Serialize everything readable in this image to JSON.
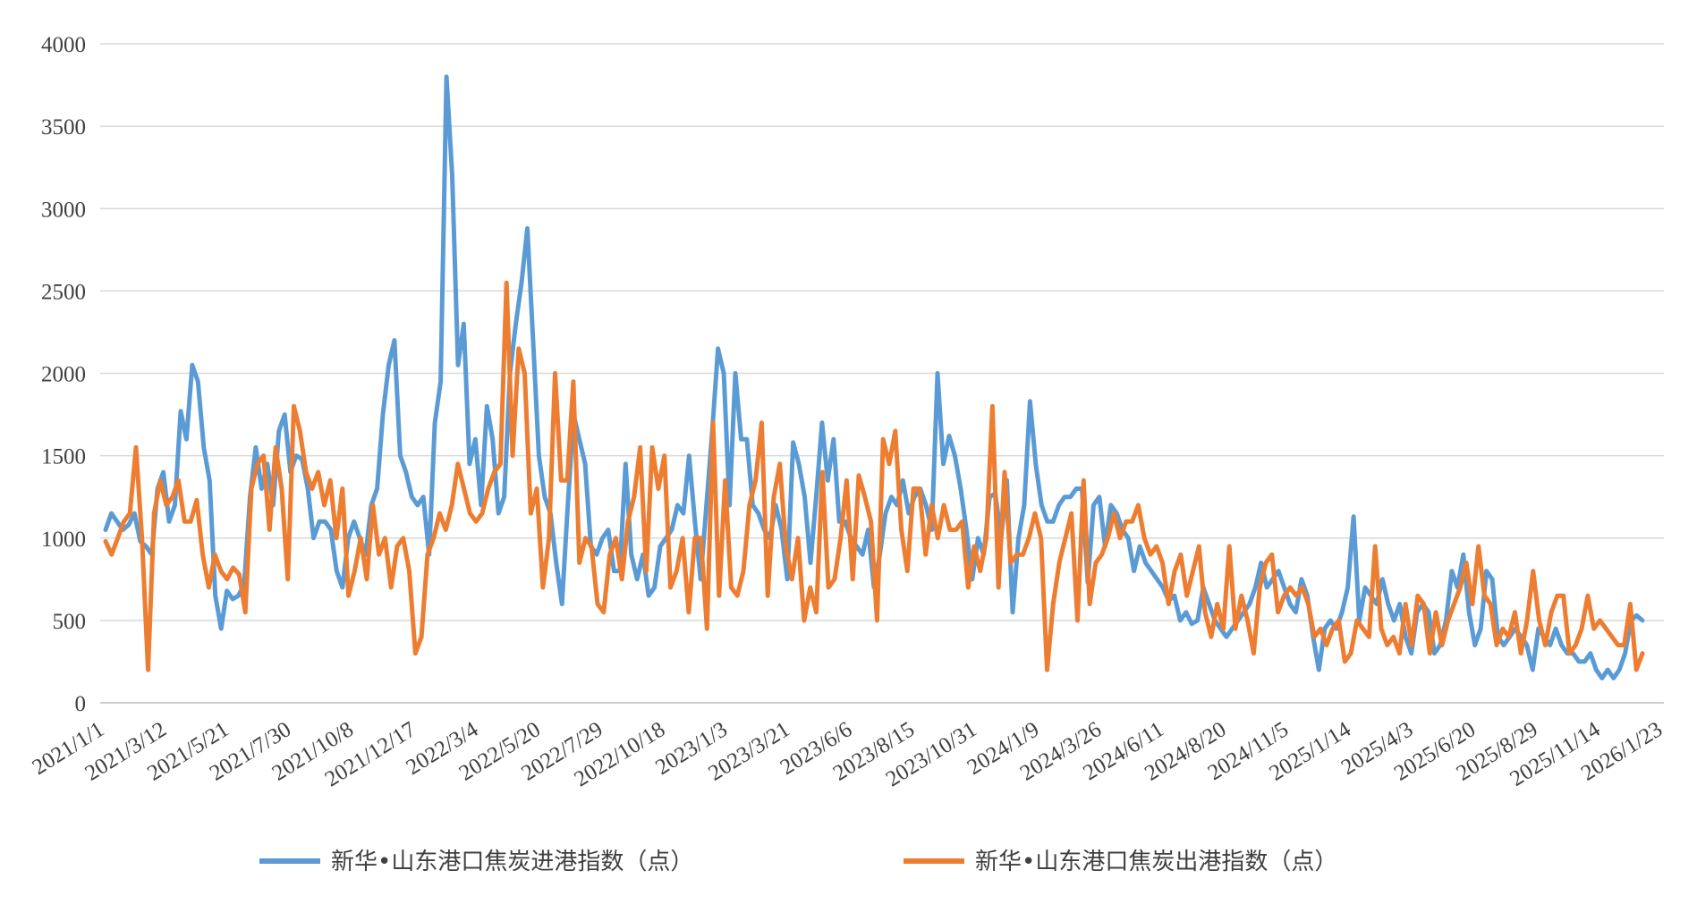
{
  "chart_data": {
    "type": "line",
    "title": "",
    "xlabel": "",
    "ylabel": "",
    "ylim": [
      0,
      4000
    ],
    "yticks": [
      0,
      500,
      1000,
      1500,
      2000,
      2500,
      3000,
      3500,
      4000
    ],
    "grid": true,
    "legend_position": "bottom",
    "x_tick_labels": [
      "2021/1/1",
      "2021/3/12",
      "2021/5/21",
      "2021/7/30",
      "2021/10/8",
      "2021/12/17",
      "2022/3/4",
      "2022/5/20",
      "2022/7/29",
      "2022/10/18",
      "2023/1/3",
      "2023/3/21",
      "2023/6/6",
      "2023/8/15",
      "2023/10/31",
      "2024/1/9",
      "2024/3/26",
      "2024/6/11",
      "2024/8/20",
      "2024/11/5",
      "2025/1/14",
      "2025/4/3",
      "2025/6/20",
      "2025/8/29",
      "2025/11/14",
      "2026/1/23"
    ],
    "series": [
      {
        "name": "新华•山东港口焦炭进港指数（点）",
        "color": "#5b9bd5",
        "values": [
          1050,
          1150,
          1100,
          1050,
          1080,
          1150,
          980,
          950,
          900,
          1300,
          1400,
          1100,
          1200,
          1770,
          1600,
          2050,
          1950,
          1550,
          1350,
          650,
          450,
          680,
          630,
          650,
          720,
          1250,
          1550,
          1300,
          1450,
          1200,
          1650,
          1750,
          1400,
          1500,
          1480,
          1300,
          1000,
          1100,
          1100,
          1050,
          800,
          700,
          1000,
          1100,
          1000,
          900,
          1200,
          1300,
          1750,
          2050,
          2200,
          1500,
          1400,
          1250,
          1200,
          1250,
          900,
          1700,
          1950,
          3800,
          3200,
          2050,
          2300,
          1450,
          1600,
          1200,
          1800,
          1600,
          1150,
          1250,
          2000,
          2300,
          2550,
          2880,
          2200,
          1500,
          1250,
          1150,
          850,
          600,
          1200,
          1750,
          1600,
          1450,
          950,
          900,
          1000,
          1050,
          800,
          800,
          1450,
          900,
          750,
          900,
          650,
          700,
          950,
          1000,
          1050,
          1200,
          1150,
          1500,
          1100,
          750,
          1200,
          1650,
          2150,
          2000,
          1200,
          2000,
          1600,
          1600,
          1200,
          1150,
          1050,
          1000,
          1200,
          1050,
          750,
          1580,
          1450,
          1250,
          850,
          1250,
          1700,
          1350,
          1600,
          1100,
          1100,
          1000,
          950,
          900,
          1050,
          700,
          900,
          1150,
          1250,
          1200,
          1350,
          1150,
          1250,
          1300,
          1200,
          1050,
          2000,
          1450,
          1620,
          1500,
          1300,
          1050,
          750,
          1000,
          900,
          1250,
          1270,
          1000,
          1350,
          550,
          1000,
          1200,
          1830,
          1450,
          1200,
          1100,
          1100,
          1200,
          1250,
          1250,
          1300,
          1300,
          730,
          1200,
          1250,
          950,
          1200,
          1150,
          1050,
          1000,
          800,
          950,
          850,
          800,
          750,
          700,
          620,
          650,
          500,
          550,
          480,
          500,
          700,
          600,
          500,
          450,
          400,
          450,
          500,
          550,
          600,
          700,
          850,
          700,
          750,
          800,
          700,
          600,
          550,
          750,
          650,
          400,
          200,
          450,
          500,
          450,
          550,
          700,
          1130,
          500,
          700,
          650,
          600,
          750,
          600,
          500,
          600,
          400,
          300,
          550,
          600,
          550,
          300,
          350,
          500,
          800,
          700,
          900,
          550,
          350,
          450,
          800,
          750,
          400,
          350,
          400,
          450,
          400,
          350,
          200,
          450,
          400,
          350,
          450,
          350,
          300,
          300,
          250,
          250,
          300,
          200,
          150,
          200,
          150,
          200,
          300,
          500,
          530,
          500
        ]
      },
      {
        "name": "新华•山东港口焦炭出港指数（点）",
        "color": "#ed7d31",
        "values": [
          980,
          900,
          1000,
          1100,
          1150,
          1550,
          1000,
          200,
          1150,
          1350,
          1200,
          1250,
          1350,
          1100,
          1100,
          1230,
          900,
          700,
          900,
          800,
          750,
          820,
          780,
          550,
          1300,
          1450,
          1500,
          1050,
          1550,
          1300,
          750,
          1800,
          1650,
          1400,
          1300,
          1400,
          1200,
          1350,
          1000,
          1300,
          650,
          800,
          1000,
          750,
          1200,
          900,
          1000,
          700,
          950,
          1000,
          800,
          300,
          400,
          900,
          1000,
          1150,
          1050,
          1200,
          1450,
          1300,
          1150,
          1100,
          1150,
          1300,
          1400,
          1450,
          2550,
          1500,
          2150,
          2000,
          1150,
          1300,
          700,
          1000,
          2000,
          1350,
          1350,
          1950,
          850,
          1000,
          950,
          600,
          550,
          900,
          1000,
          750,
          1100,
          1250,
          1550,
          800,
          1550,
          1300,
          1500,
          700,
          800,
          1000,
          550,
          1000,
          1000,
          450,
          1700,
          650,
          1350,
          700,
          650,
          800,
          1200,
          1350,
          1700,
          650,
          1250,
          1450,
          950,
          750,
          1000,
          500,
          700,
          550,
          1400,
          700,
          750,
          1000,
          1350,
          750,
          1380,
          1250,
          1100,
          500,
          1600,
          1450,
          1650,
          1050,
          800,
          1300,
          1300,
          900,
          1200,
          1000,
          1200,
          1050,
          1050,
          1100,
          700,
          950,
          800,
          1000,
          1800,
          700,
          1400,
          850,
          900,
          900,
          1000,
          1150,
          1000,
          200,
          600,
          850,
          1000,
          1150,
          500,
          1350,
          600,
          850,
          900,
          1000,
          1150,
          1000,
          1100,
          1100,
          1200,
          1000,
          900,
          950,
          850,
          600,
          800,
          900,
          650,
          800,
          950,
          550,
          400,
          600,
          450,
          950,
          450,
          650,
          500,
          300,
          700,
          850,
          900,
          550,
          650,
          700,
          650,
          700,
          600,
          400,
          450,
          350,
          450,
          500,
          250,
          300,
          500,
          450,
          400,
          950,
          450,
          350,
          400,
          300,
          600,
          350,
          650,
          600,
          300,
          550,
          350,
          500,
          600,
          700,
          850,
          600,
          950,
          650,
          600,
          350,
          450,
          400,
          550,
          300,
          500,
          800,
          500,
          350,
          550,
          650,
          650,
          300,
          350,
          450,
          650,
          450,
          500,
          450,
          400,
          350,
          350,
          600,
          200,
          300
        ]
      }
    ]
  }
}
